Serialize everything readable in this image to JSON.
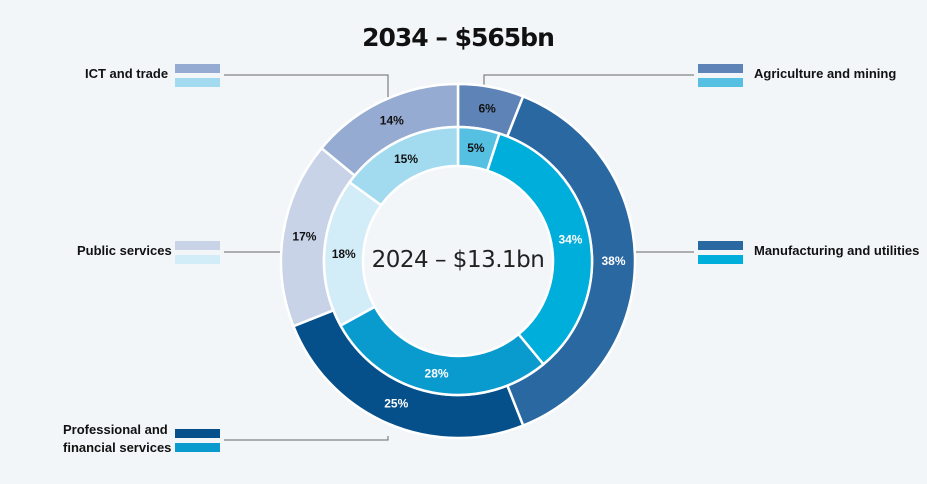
{
  "chart_data": {
    "type": "donut",
    "title": "2034 – $565bn",
    "center_label": "2024 – $13.1bn",
    "series": [
      {
        "name": "2034 – $565bn",
        "ring": "outer",
        "values": [
          6,
          38,
          25,
          17,
          14
        ]
      },
      {
        "name": "2024 – $13.1bn",
        "ring": "inner",
        "values": [
          5,
          34,
          28,
          18,
          15
        ]
      }
    ],
    "categories": [
      {
        "name": "Agriculture and mining",
        "outer_pct": "6%",
        "inner_pct": "5%",
        "outer_color": "#5e83b6",
        "inner_color": "#55c0e2"
      },
      {
        "name": "Manufacturing and utilities",
        "outer_pct": "38%",
        "inner_pct": "34%",
        "outer_color": "#2a68a2",
        "inner_color": "#00aedb"
      },
      {
        "name": "Professional and financial services",
        "label_lines": [
          "Professional and",
          "financial services"
        ],
        "outer_pct": "25%",
        "inner_pct": "28%",
        "outer_color": "#054f8b",
        "inner_color": "#0a9bce"
      },
      {
        "name": "Public services",
        "outer_pct": "17%",
        "inner_pct": "18%",
        "outer_color": "#c8d3e8",
        "inner_color": "#d3edf8"
      },
      {
        "name": "ICT and trade",
        "outer_pct": "14%",
        "inner_pct": "15%",
        "outer_color": "#95abd1",
        "inner_color": "#a2dbf0"
      }
    ],
    "colors": {
      "leader": "#666666",
      "separator": "#ffffff",
      "text": "#111111",
      "text_on_dark": "#ffffff"
    }
  }
}
